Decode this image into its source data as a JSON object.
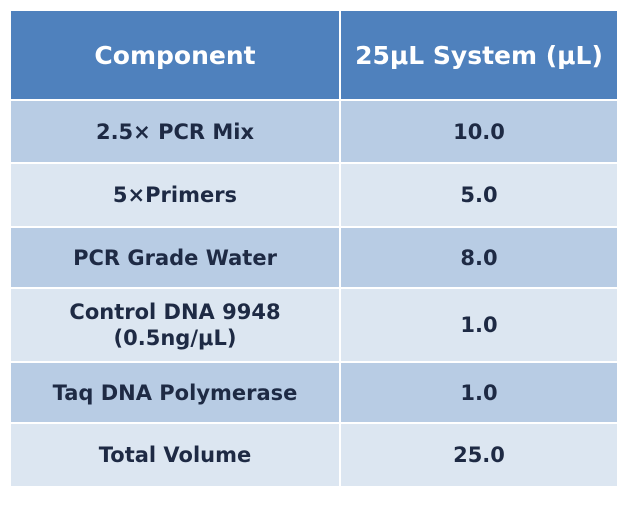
{
  "table": {
    "headers": {
      "component": "Component",
      "system": "25μL System (μL)"
    },
    "rows": [
      {
        "component": "2.5× PCR Mix",
        "volume": "10.0"
      },
      {
        "component": "5×Primers",
        "volume": "5.0"
      },
      {
        "component": "PCR Grade Water",
        "volume": "8.0"
      },
      {
        "component": "Control DNA  9948\n(0.5ng/μL)",
        "volume": "1.0"
      },
      {
        "component": "Taq DNA Polymerase",
        "volume": "1.0"
      },
      {
        "component": "Total Volume",
        "volume": "25.0"
      }
    ]
  },
  "colors": {
    "header_bg": "#4f81bd",
    "band_dark": "#b8cce4",
    "band_light": "#dce6f1",
    "text": "#1e2a44"
  }
}
